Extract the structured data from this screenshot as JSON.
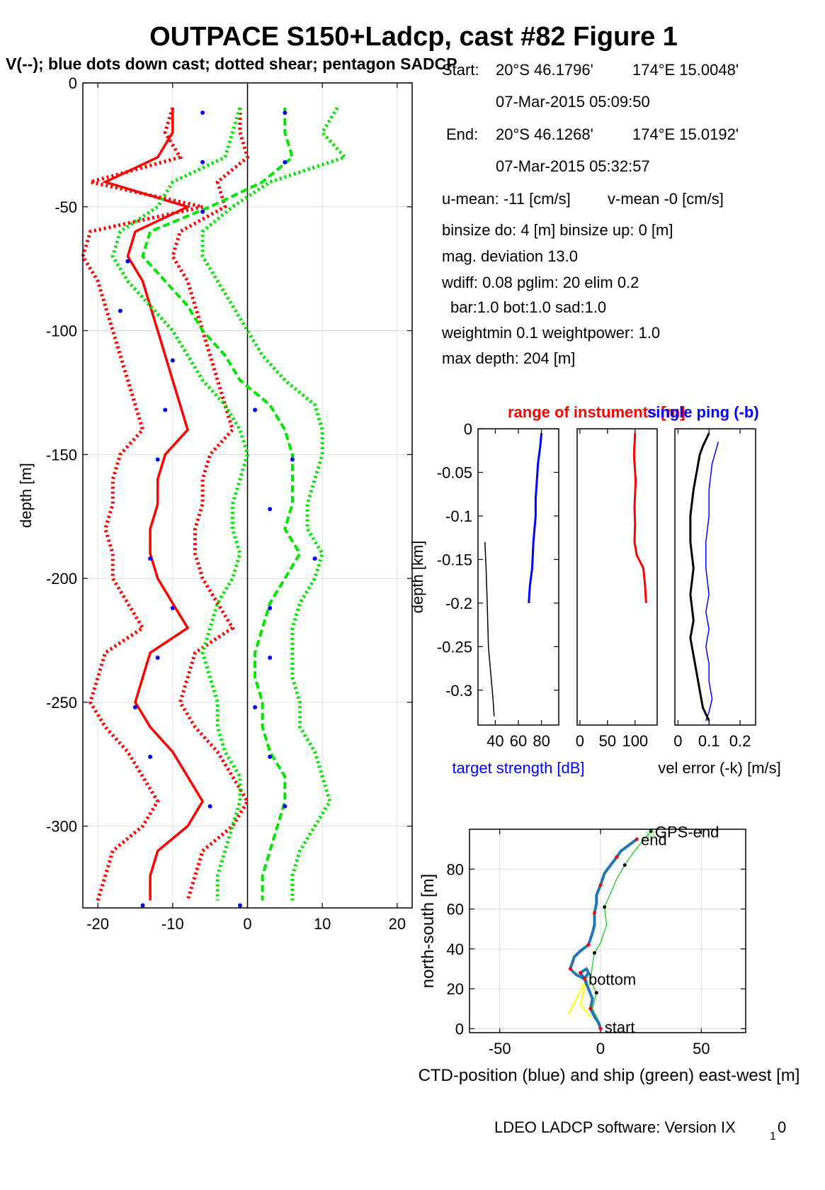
{
  "title": "OUTPACE S150+Ladcp, cast #82  Figure 1",
  "subtitle": "V(--); blue dots down cast; dotted shear; pentagon SADCP",
  "info": {
    "start_label": "Start:",
    "start_lat": "20°S 46.1796'",
    "start_lon": "174°E 15.0048'",
    "start_time": "07-Mar-2015 05:09:50",
    "end_label": "End:",
    "end_lat": "20°S 46.1268'",
    "end_lon": "174°E 15.0192'",
    "end_time": "07-Mar-2015 05:32:57",
    "umean": "u-mean: -11 [cm/s]",
    "vmean": "v-mean  -0 [cm/s]",
    "binsize": "binsize do: 4 [m]  binsize up:  0 [m]",
    "magdev": "mag. deviation 13.0",
    "wdiff": "wdiff: 0.08  pglim: 20  elim 0.2",
    "bar": "bar:1.0 bot:1.0 sad:1.0",
    "weight": "weightmin 0.1  weightpower: 1.0",
    "maxdepth": "max depth: 204 [m]"
  },
  "footer": "LDEO LADCP software: Version IX",
  "footer_sub": "1",
  "footer_end": "0",
  "colors": {
    "u": "#ff0000",
    "v": "#00e600",
    "dots": "#0000ff",
    "ctd": "#1f77b4",
    "ship": "#33cc33",
    "axis": "#000000"
  },
  "chart_data": [
    {
      "type": "line",
      "name": "velocity profiles",
      "ylabel": "depth [m]",
      "xlabel": "",
      "xlim": [
        -22,
        22
      ],
      "ylim": [
        -333,
        0
      ],
      "xticks": [
        -20,
        -10,
        0,
        10,
        20
      ],
      "yticks": [
        0,
        -50,
        -100,
        -150,
        -200,
        -250,
        -300
      ],
      "grid": true,
      "depth": [
        -10,
        -20,
        -30,
        -40,
        -50,
        -60,
        -70,
        -80,
        -90,
        -100,
        -110,
        -120,
        -130,
        -140,
        -150,
        -160,
        -170,
        -180,
        -190,
        -200,
        -210,
        -220,
        -230,
        -240,
        -250,
        -260,
        -270,
        -280,
        -290,
        -300,
        -310,
        -320,
        -330
      ],
      "series": [
        {
          "values": [
            -10,
            -10,
            -12,
            -19,
            -8,
            -15,
            -16,
            -14,
            -13,
            -12,
            -11,
            -10,
            -9,
            -8,
            -11,
            -12,
            -12,
            -13,
            -13,
            -12,
            -10,
            -8,
            -13,
            -14,
            -15,
            -13,
            -10,
            -8,
            -6,
            -8,
            -12,
            -13,
            -13
          ]
        },
        {
          "values": [
            -10,
            -11,
            -9,
            -21,
            -6,
            -21,
            -22,
            -20,
            -19,
            -18,
            -17,
            -16,
            -15,
            -14,
            -17,
            -18,
            -18,
            -19,
            -18,
            -18,
            -16,
            -14,
            -19,
            -20,
            -21,
            -19,
            -16,
            -14,
            -12,
            -14,
            -18,
            -19,
            -20
          ]
        },
        {
          "values": [
            -1,
            -1,
            0,
            -4,
            -3,
            -9,
            -10,
            -8,
            -7,
            -6,
            -5,
            -4,
            -3,
            -2,
            -5,
            -6,
            -6,
            -7,
            -7,
            -6,
            -4,
            -2,
            -7,
            -8,
            -9,
            -7,
            -4,
            -2,
            0,
            -2,
            -6,
            -7,
            -8
          ]
        },
        {
          "values": [
            5,
            5,
            6,
            2,
            -5,
            -13,
            -14,
            -11,
            -8,
            -6,
            -3,
            -1,
            3,
            5,
            6,
            6,
            6,
            5,
            7,
            5,
            3,
            2,
            1,
            1,
            2,
            2,
            3,
            5,
            5,
            4,
            3,
            2,
            2
          ]
        },
        {
          "values": [
            12,
            10,
            13,
            3,
            -2,
            -6,
            -6,
            -4,
            -2,
            0,
            2,
            5,
            9,
            10,
            10,
            9,
            8,
            8,
            10,
            9,
            7,
            6,
            6,
            6,
            7,
            7,
            9,
            10,
            11,
            9,
            7,
            6,
            6
          ]
        },
        {
          "values": [
            -1,
            -2,
            -3,
            -10,
            -12,
            -17,
            -18,
            -16,
            -13,
            -10,
            -8,
            -6,
            -3,
            -1,
            0,
            -1,
            -2,
            -2,
            -1,
            -2,
            -4,
            -5,
            -6,
            -5,
            -4,
            -4,
            -3,
            -1,
            -1,
            -2,
            -3,
            -4,
            -4
          ]
        }
      ],
      "dots": [
        {
          "x": -6,
          "y": -12
        },
        {
          "x": -6,
          "y": -32
        },
        {
          "x": -6,
          "y": -52
        },
        {
          "x": -16,
          "y": -72
        },
        {
          "x": -17,
          "y": -92
        },
        {
          "x": -10,
          "y": -112
        },
        {
          "x": -11,
          "y": -132
        },
        {
          "x": -12,
          "y": -152
        },
        {
          "x": -13,
          "y": -192
        },
        {
          "x": -10,
          "y": -212
        },
        {
          "x": -12,
          "y": -232
        },
        {
          "x": -15,
          "y": -252
        },
        {
          "x": -13,
          "y": -272
        },
        {
          "x": -5,
          "y": -292
        },
        {
          "x": -14,
          "y": -332
        },
        {
          "x": 5,
          "y": -12
        },
        {
          "x": 5,
          "y": -32
        },
        {
          "x": 1,
          "y": -132
        },
        {
          "x": 6,
          "y": -152
        },
        {
          "x": 3,
          "y": -172
        },
        {
          "x": 9,
          "y": -192
        },
        {
          "x": 3,
          "y": -212
        },
        {
          "x": 3,
          "y": -232
        },
        {
          "x": 1,
          "y": -252
        },
        {
          "x": 3,
          "y": -272
        },
        {
          "x": 5,
          "y": -292
        },
        {
          "x": -1,
          "y": -332
        }
      ]
    },
    {
      "type": "line",
      "name": "target strength",
      "title_red": "range of instuments [m]",
      "title_blue": "single ping (-b)",
      "ylabel": "depth [km]",
      "xlabel": "target strength [dB]",
      "xlim": [
        25,
        95
      ],
      "ylim": [
        -0.34,
        0
      ],
      "xticks": [
        40,
        60,
        80
      ],
      "yticks": [
        0,
        -0.05,
        -0.1,
        -0.15,
        -0.2,
        -0.25,
        -0.3
      ],
      "blue_x": [
        80,
        79,
        77,
        76,
        75,
        75,
        73,
        72,
        70,
        69
      ],
      "blue_y": [
        -0.005,
        -0.02,
        -0.04,
        -0.06,
        -0.08,
        -0.1,
        -0.13,
        -0.16,
        -0.18,
        -0.2
      ],
      "black_x": [
        31,
        32,
        33,
        34,
        36,
        38,
        39
      ],
      "black_y": [
        -0.13,
        -0.16,
        -0.2,
        -0.25,
        -0.28,
        -0.31,
        -0.33
      ]
    },
    {
      "type": "line",
      "name": "instrument range",
      "xlim": [
        -5,
        140
      ],
      "ylim": [
        -0.34,
        0
      ],
      "xticks": [
        0,
        50,
        100
      ],
      "x": [
        100,
        98,
        101,
        99,
        100,
        99,
        103,
        115,
        118,
        119,
        120
      ],
      "y": [
        -0.005,
        -0.03,
        -0.06,
        -0.09,
        -0.11,
        -0.13,
        -0.145,
        -0.16,
        -0.18,
        -0.19,
        -0.2
      ]
    },
    {
      "type": "line",
      "name": "velocity error",
      "xlabel": "vel error (-k) [m/s]",
      "xlim": [
        -0.01,
        0.25
      ],
      "ylim": [
        -0.34,
        0
      ],
      "xticks": [
        0,
        0.1,
        0.2
      ],
      "black_x": [
        0.1,
        0.08,
        0.07,
        0.06,
        0.05,
        0.04,
        0.04,
        0.05,
        0.04,
        0.05,
        0.04,
        0.05,
        0.06,
        0.07,
        0.08,
        0.1
      ],
      "black_y": [
        -0.005,
        -0.02,
        -0.03,
        -0.05,
        -0.07,
        -0.1,
        -0.13,
        -0.16,
        -0.19,
        -0.22,
        -0.24,
        -0.26,
        -0.28,
        -0.3,
        -0.32,
        -0.335
      ],
      "blue_x": [
        0.13,
        0.11,
        0.1,
        0.1,
        0.09,
        0.09,
        0.1,
        0.09,
        0.1,
        0.09,
        0.1,
        0.1,
        0.11,
        0.1,
        0.09
      ],
      "blue_y": [
        -0.015,
        -0.04,
        -0.07,
        -0.1,
        -0.13,
        -0.16,
        -0.19,
        -0.21,
        -0.23,
        -0.25,
        -0.27,
        -0.29,
        -0.31,
        -0.325,
        -0.335
      ]
    },
    {
      "type": "line",
      "name": "position",
      "xlabel": "CTD-position (blue) and ship (green) east-west [m]",
      "ylabel": "north-south [m]",
      "xlim": [
        -65,
        72
      ],
      "ylim": [
        -2,
        100
      ],
      "xticks": [
        -50,
        0,
        50
      ],
      "yticks": [
        0,
        20,
        40,
        60,
        80
      ],
      "ctd_x": [
        0,
        -1,
        -3,
        -5,
        -4,
        -6,
        -8,
        -6,
        -7,
        -10,
        -8,
        -12,
        -15,
        -13,
        -10,
        -6,
        -4,
        -3,
        -3,
        -2,
        -2,
        0,
        2,
        5,
        8,
        10,
        14,
        18
      ],
      "ctd_y": [
        0,
        3,
        6,
        10,
        15,
        20,
        25,
        28,
        30,
        28,
        25,
        27,
        30,
        36,
        39,
        42,
        48,
        52,
        58,
        63,
        67,
        72,
        78,
        82,
        86,
        89,
        92,
        95
      ],
      "ship_x": [
        0,
        -1,
        -4,
        -2,
        -5,
        -4,
        -3,
        0,
        3,
        2,
        5,
        8,
        12,
        16,
        20,
        25
      ],
      "ship_y": [
        0,
        4,
        10,
        18,
        24,
        32,
        38,
        43,
        52,
        61,
        68,
        75,
        82,
        88,
        93,
        99
      ],
      "yellow_x": [
        -16,
        -12,
        -7,
        -10,
        -5
      ],
      "yellow_y": [
        7,
        15,
        25,
        12,
        6
      ],
      "labels": {
        "start": "start",
        "bottom": "bottom",
        "end": "end",
        "gps_end": "GPS-end"
      }
    }
  ]
}
